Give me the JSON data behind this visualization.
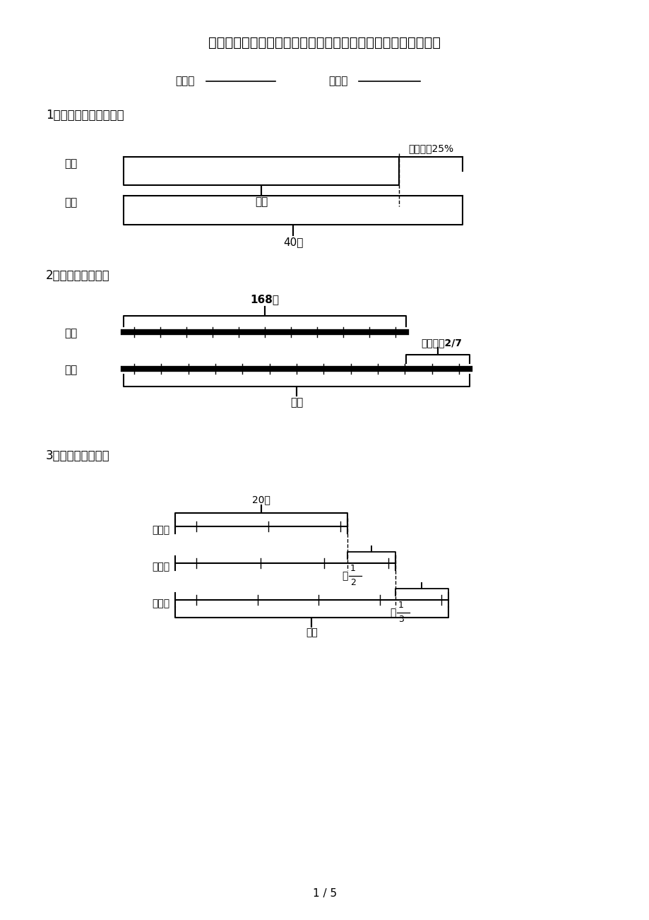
{
  "title": "浙教版最新六年级数学上册专项看图列方程计算提高班日常训练",
  "class_label": "班级：",
  "name_label": "姓名：",
  "q1_label": "1．看线段图列式计算。",
  "q2_label": "2．看图列式计算。",
  "q3_label": "3．看图列式计算。",
  "page_num": "1 / 5",
  "bg_color": "#ffffff",
  "text_color": "#000000"
}
